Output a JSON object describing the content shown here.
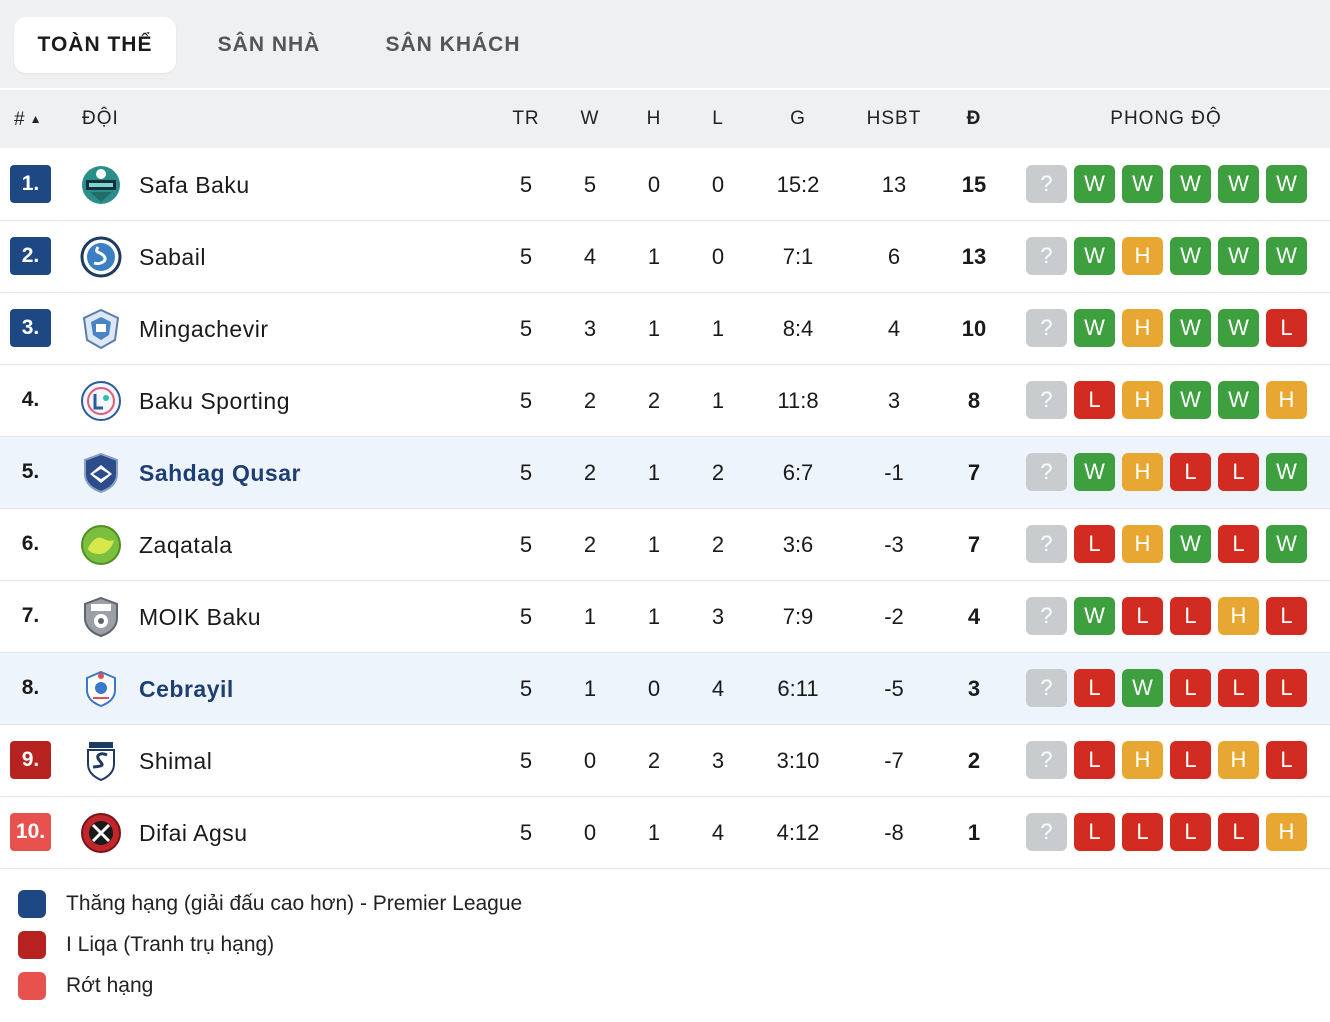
{
  "tabs": [
    {
      "label": "TOÀN THỂ",
      "active": true
    },
    {
      "label": "SÂN NHÀ",
      "active": false
    },
    {
      "label": "SÂN KHÁCH",
      "active": false
    }
  ],
  "header": {
    "rank": "#",
    "team": "ĐỘI",
    "tr": "TR",
    "w": "W",
    "h": "H",
    "l": "L",
    "g": "G",
    "hsbt": "HSBT",
    "pts": "Đ",
    "form": "PHONG ĐỘ"
  },
  "rows": [
    {
      "rank": "1.",
      "zone": "promo",
      "team": "Safa Baku",
      "highlight": false,
      "tr": "5",
      "w": "5",
      "h": "0",
      "l": "0",
      "g": "15:2",
      "hsbt": "13",
      "pts": "15",
      "form": [
        "?",
        "W",
        "W",
        "W",
        "W",
        "W"
      ]
    },
    {
      "rank": "2.",
      "zone": "promo",
      "team": "Sabail",
      "highlight": false,
      "tr": "5",
      "w": "4",
      "h": "1",
      "l": "0",
      "g": "7:1",
      "hsbt": "6",
      "pts": "13",
      "form": [
        "?",
        "W",
        "H",
        "W",
        "W",
        "W"
      ]
    },
    {
      "rank": "3.",
      "zone": "promo",
      "team": "Mingachevir",
      "highlight": false,
      "tr": "5",
      "w": "3",
      "h": "1",
      "l": "1",
      "g": "8:4",
      "hsbt": "4",
      "pts": "10",
      "form": [
        "?",
        "W",
        "H",
        "W",
        "W",
        "L"
      ]
    },
    {
      "rank": "4.",
      "zone": "none",
      "team": "Baku Sporting",
      "highlight": false,
      "tr": "5",
      "w": "2",
      "h": "2",
      "l": "1",
      "g": "11:8",
      "hsbt": "3",
      "pts": "8",
      "form": [
        "?",
        "L",
        "H",
        "W",
        "W",
        "H"
      ]
    },
    {
      "rank": "5.",
      "zone": "none",
      "team": "Sahdag Qusar",
      "highlight": true,
      "tr": "5",
      "w": "2",
      "h": "1",
      "l": "2",
      "g": "6:7",
      "hsbt": "-1",
      "pts": "7",
      "form": [
        "?",
        "W",
        "H",
        "L",
        "L",
        "W"
      ]
    },
    {
      "rank": "6.",
      "zone": "none",
      "team": "Zaqatala",
      "highlight": false,
      "tr": "5",
      "w": "2",
      "h": "1",
      "l": "2",
      "g": "3:6",
      "hsbt": "-3",
      "pts": "7",
      "form": [
        "?",
        "L",
        "H",
        "W",
        "L",
        "W"
      ]
    },
    {
      "rank": "7.",
      "zone": "none",
      "team": "MOIK Baku",
      "highlight": false,
      "tr": "5",
      "w": "1",
      "h": "1",
      "l": "3",
      "g": "7:9",
      "hsbt": "-2",
      "pts": "4",
      "form": [
        "?",
        "W",
        "L",
        "L",
        "H",
        "L"
      ]
    },
    {
      "rank": "8.",
      "zone": "none",
      "team": "Cebrayil",
      "highlight": true,
      "tr": "5",
      "w": "1",
      "h": "0",
      "l": "4",
      "g": "6:11",
      "hsbt": "-5",
      "pts": "3",
      "form": [
        "?",
        "L",
        "W",
        "L",
        "L",
        "L"
      ]
    },
    {
      "rank": "9.",
      "zone": "playoff",
      "team": "Shimal",
      "highlight": false,
      "tr": "5",
      "w": "0",
      "h": "2",
      "l": "3",
      "g": "3:10",
      "hsbt": "-7",
      "pts": "2",
      "form": [
        "?",
        "L",
        "H",
        "L",
        "H",
        "L"
      ]
    },
    {
      "rank": "10.",
      "zone": "releg",
      "team": "Difai Agsu",
      "highlight": false,
      "tr": "5",
      "w": "0",
      "h": "1",
      "l": "4",
      "g": "4:12",
      "hsbt": "-8",
      "pts": "1",
      "form": [
        "?",
        "L",
        "L",
        "L",
        "L",
        "H"
      ]
    }
  ],
  "legend": [
    {
      "label": "Thăng hạng (giải đấu cao hơn) - Premier League",
      "color": "#1e4884"
    },
    {
      "label": "I Liqa (Tranh trụ hạng)",
      "color": "#b5221f"
    },
    {
      "label": "Rớt hạng",
      "color": "#e8524e"
    }
  ],
  "colors": {
    "win": "#3e9f3e",
    "draw": "#e8a633",
    "loss": "#d12b22",
    "unknown": "#c9cccf",
    "highlight_row": "#eef4fc"
  }
}
